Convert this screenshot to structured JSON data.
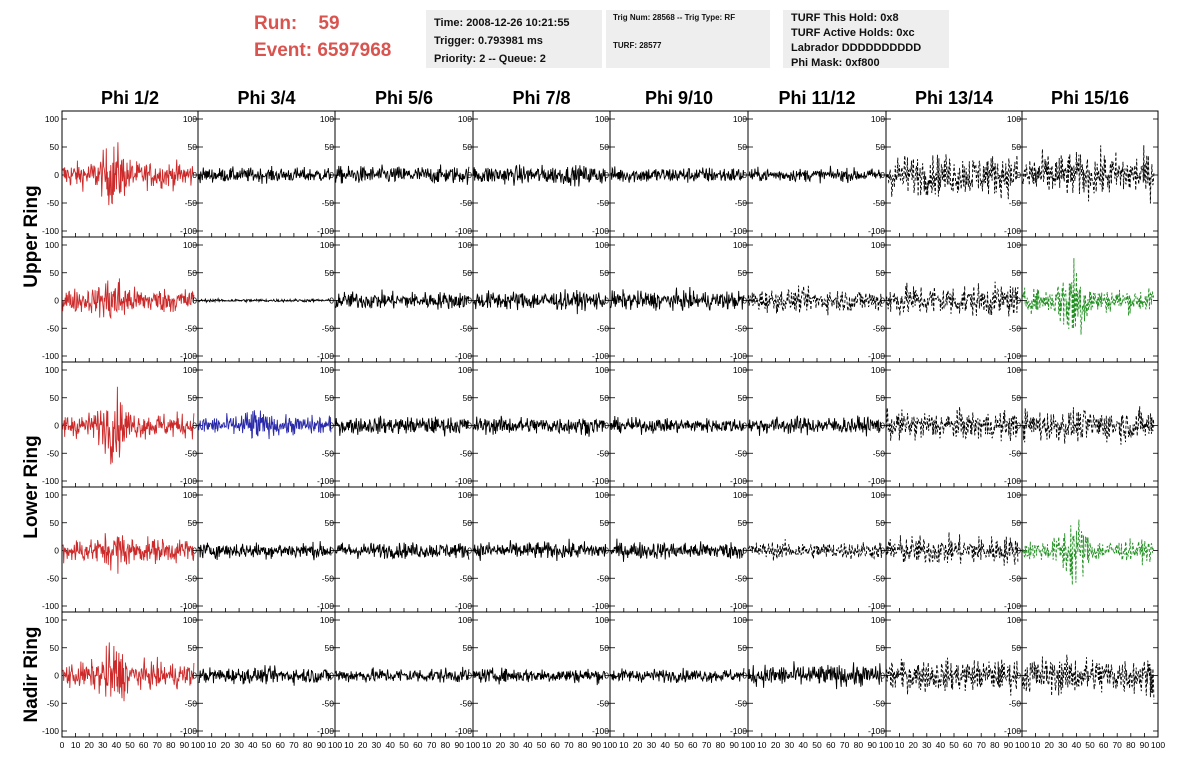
{
  "header": {
    "run_label": "Run:",
    "run_value": "59",
    "event_label": "Event:",
    "event_value": "6597968",
    "time": "Time: 2008-12-26 10:21:55",
    "trigger": "Trigger: 0.793981 ms",
    "priority": "Priority: 2 -- Queue: 2",
    "trig_num": "Trig Num: 28568 -- Trig Type: RF",
    "turf": "TURF: 28577",
    "turf_this_hold": "TURF This Hold: 0x8",
    "turf_active_holds": "TURF Active Holds: 0xc",
    "labrador": "Labrador DDDDDDDDDD",
    "phi_mask": "Phi Mask: 0xf800"
  },
  "colors": {
    "header_red": "#d9534f",
    "red": "#cc2a2a",
    "blue": "#2a2aaa",
    "green": "#1f8f1f",
    "black": "#000000"
  },
  "chart_data": {
    "type": "line",
    "columns": [
      "Phi 1/2",
      "Phi 3/4",
      "Phi 5/6",
      "Phi 7/8",
      "Phi 9/10",
      "Phi 11/12",
      "Phi 13/14",
      "Phi 15/16"
    ],
    "ring_labels": [
      {
        "label": "Upper Ring",
        "rows": [
          0,
          1
        ]
      },
      {
        "label": "Lower Ring",
        "rows": [
          2,
          3
        ]
      },
      {
        "label": "Nadir Ring",
        "rows": [
          4
        ]
      }
    ],
    "ylim": [
      -100,
      100
    ],
    "y_ticks": [
      -100,
      -50,
      0,
      50,
      100
    ],
    "xlim": [
      0,
      100
    ],
    "x_ticks": [
      0,
      10,
      20,
      30,
      40,
      50,
      60,
      70,
      80,
      90,
      100
    ],
    "panels": [
      [
        {
          "color": "red",
          "style": "solid",
          "amp": 18,
          "burst": 28,
          "center": 38
        },
        {
          "color": "black",
          "style": "solid",
          "amp": 10,
          "burst": 0,
          "center": 40
        },
        {
          "color": "black",
          "style": "solid",
          "amp": 12,
          "burst": 0,
          "center": 40
        },
        {
          "color": "black",
          "style": "solid",
          "amp": 13,
          "burst": 0,
          "center": 40
        },
        {
          "color": "black",
          "style": "solid",
          "amp": 11,
          "burst": 0,
          "center": 40
        },
        {
          "color": "black",
          "style": "solid",
          "amp": 9,
          "burst": 0,
          "center": 40
        },
        {
          "color": "black",
          "style": "dashed",
          "amp": 28,
          "burst": 0,
          "center": 40
        },
        {
          "color": "black",
          "style": "dashed",
          "amp": 30,
          "burst": 0,
          "center": 40
        }
      ],
      [
        {
          "color": "red",
          "style": "solid",
          "amp": 17,
          "burst": 22,
          "center": 38
        },
        {
          "color": "black",
          "style": "solid",
          "amp": 2,
          "burst": 0,
          "center": 40
        },
        {
          "color": "black",
          "style": "solid",
          "amp": 12,
          "burst": 0,
          "center": 40
        },
        {
          "color": "black",
          "style": "solid",
          "amp": 13,
          "burst": 0,
          "center": 40
        },
        {
          "color": "black",
          "style": "solid",
          "amp": 13,
          "burst": 0,
          "center": 40
        },
        {
          "color": "black",
          "style": "dashed",
          "amp": 16,
          "burst": 0,
          "center": 40
        },
        {
          "color": "black",
          "style": "dashed",
          "amp": 22,
          "burst": 0,
          "center": 40
        },
        {
          "color": "green",
          "style": "dashed",
          "amp": 16,
          "burst": 55,
          "center": 38
        }
      ],
      [
        {
          "color": "red",
          "style": "solid",
          "amp": 17,
          "burst": 32,
          "center": 38
        },
        {
          "color": "blue",
          "style": "solid",
          "amp": 13,
          "burst": 12,
          "center": 40
        },
        {
          "color": "black",
          "style": "solid",
          "amp": 12,
          "burst": 0,
          "center": 40
        },
        {
          "color": "black",
          "style": "solid",
          "amp": 12,
          "burst": 0,
          "center": 40
        },
        {
          "color": "black",
          "style": "solid",
          "amp": 10,
          "burst": 0,
          "center": 40
        },
        {
          "color": "black",
          "style": "solid",
          "amp": 12,
          "burst": 0,
          "center": 40
        },
        {
          "color": "black",
          "style": "dashed",
          "amp": 20,
          "burst": 0,
          "center": 40
        },
        {
          "color": "black",
          "style": "dashed",
          "amp": 22,
          "burst": 0,
          "center": 40
        }
      ],
      [
        {
          "color": "red",
          "style": "solid",
          "amp": 17,
          "burst": 12,
          "center": 40
        },
        {
          "color": "black",
          "style": "solid",
          "amp": 11,
          "burst": 0,
          "center": 40
        },
        {
          "color": "black",
          "style": "solid",
          "amp": 11,
          "burst": 0,
          "center": 40
        },
        {
          "color": "black",
          "style": "solid",
          "amp": 12,
          "burst": 0,
          "center": 40
        },
        {
          "color": "black",
          "style": "solid",
          "amp": 12,
          "burst": 0,
          "center": 40
        },
        {
          "color": "black",
          "style": "dashed",
          "amp": 12,
          "burst": 0,
          "center": 40
        },
        {
          "color": "black",
          "style": "dashed",
          "amp": 20,
          "burst": 0,
          "center": 40
        },
        {
          "color": "green",
          "style": "dashed",
          "amp": 14,
          "burst": 38,
          "center": 38
        }
      ],
      [
        {
          "color": "red",
          "style": "solid",
          "amp": 18,
          "burst": 30,
          "center": 38
        },
        {
          "color": "black",
          "style": "solid",
          "amp": 11,
          "burst": 0,
          "center": 40
        },
        {
          "color": "black",
          "style": "solid",
          "amp": 10,
          "burst": 0,
          "center": 40
        },
        {
          "color": "black",
          "style": "solid",
          "amp": 10,
          "burst": 0,
          "center": 40
        },
        {
          "color": "black",
          "style": "solid",
          "amp": 9,
          "burst": 0,
          "center": 40
        },
        {
          "color": "black",
          "style": "solid",
          "amp": 15,
          "burst": 0,
          "center": 40
        },
        {
          "color": "black",
          "style": "dashed",
          "amp": 22,
          "burst": 0,
          "center": 40
        },
        {
          "color": "black",
          "style": "dashed",
          "amp": 26,
          "burst": 0,
          "center": 40
        }
      ]
    ]
  }
}
